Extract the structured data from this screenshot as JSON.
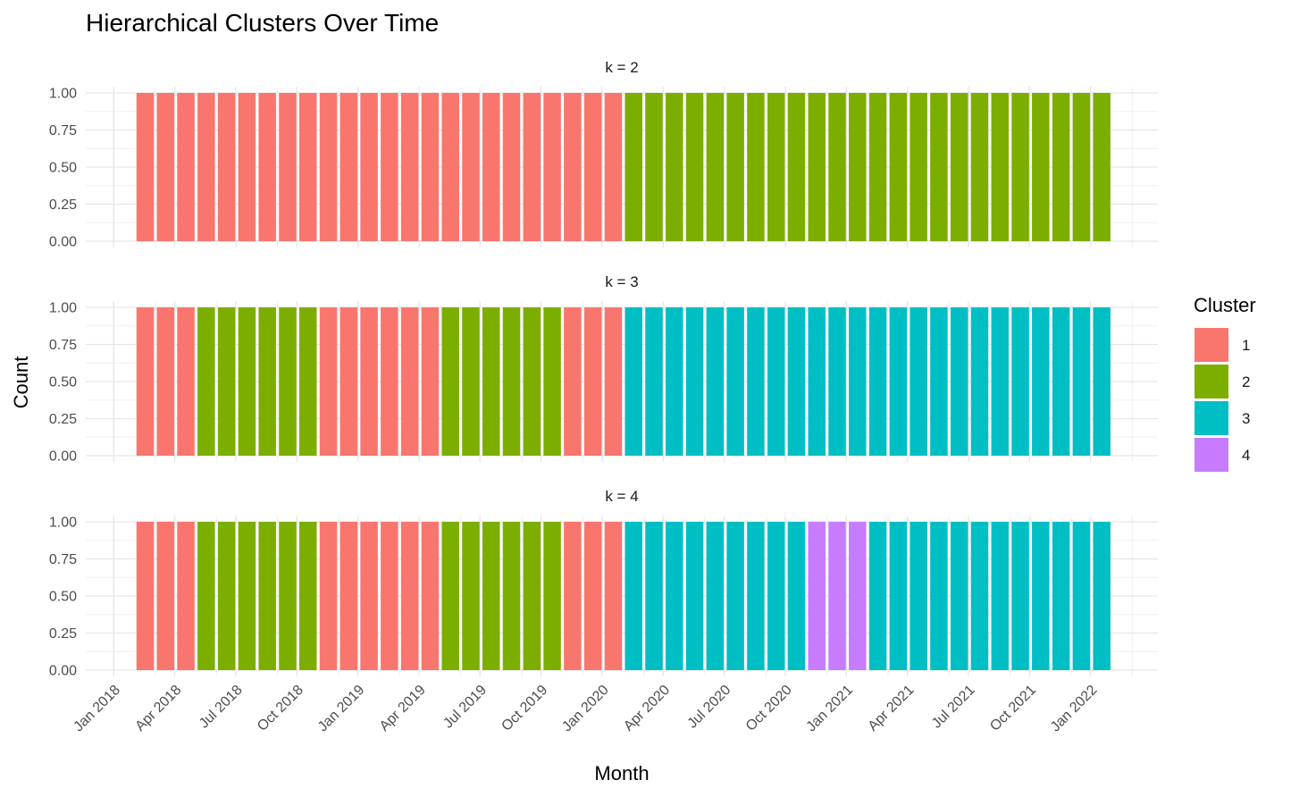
{
  "chart_data": {
    "type": "bar",
    "title": "Hierarchical Clusters Over Time",
    "xlabel": "Month",
    "ylabel": "Count",
    "ylim": [
      0,
      1
    ],
    "y_ticks": [
      "0.00",
      "0.25",
      "0.50",
      "0.75",
      "1.00"
    ],
    "x_tick_labels": [
      "Jan 2018",
      "Apr 2018",
      "Jul 2018",
      "Oct 2018",
      "Jan 2019",
      "Apr 2019",
      "Jul 2019",
      "Oct 2019",
      "Jan 2020",
      "Apr 2020",
      "Jul 2020",
      "Oct 2020",
      "Jan 2021",
      "Apr 2021",
      "Jul 2021",
      "Oct 2021",
      "Jan 2022"
    ],
    "x_start": "2018-01",
    "x_end": "2021-12",
    "legend": {
      "title": "Cluster",
      "position": "right",
      "entries": [
        {
          "label": "1",
          "color": "#F8766D"
        },
        {
          "label": "2",
          "color": "#7CAE00"
        },
        {
          "label": "3",
          "color": "#00BFC4"
        },
        {
          "label": "4",
          "color": "#C77CFF"
        }
      ]
    },
    "panels": [
      {
        "label": "k = 2",
        "value": 1,
        "clusters": [
          1,
          1,
          1,
          1,
          1,
          1,
          1,
          1,
          1,
          1,
          1,
          1,
          1,
          1,
          1,
          1,
          1,
          1,
          1,
          1,
          1,
          1,
          1,
          1,
          2,
          2,
          2,
          2,
          2,
          2,
          2,
          2,
          2,
          2,
          2,
          2,
          2,
          2,
          2,
          2,
          2,
          2,
          2,
          2,
          2,
          2,
          2,
          2
        ]
      },
      {
        "label": "k = 3",
        "value": 1,
        "clusters": [
          1,
          1,
          1,
          2,
          2,
          2,
          2,
          2,
          2,
          1,
          1,
          1,
          1,
          1,
          1,
          2,
          2,
          2,
          2,
          2,
          2,
          1,
          1,
          1,
          3,
          3,
          3,
          3,
          3,
          3,
          3,
          3,
          3,
          3,
          3,
          3,
          3,
          3,
          3,
          3,
          3,
          3,
          3,
          3,
          3,
          3,
          3,
          3
        ]
      },
      {
        "label": "k = 4",
        "value": 1,
        "clusters": [
          1,
          1,
          1,
          2,
          2,
          2,
          2,
          2,
          2,
          1,
          1,
          1,
          1,
          1,
          1,
          2,
          2,
          2,
          2,
          2,
          2,
          1,
          1,
          1,
          3,
          3,
          3,
          3,
          3,
          3,
          3,
          3,
          3,
          4,
          4,
          4,
          3,
          3,
          3,
          3,
          3,
          3,
          3,
          3,
          3,
          3,
          3,
          3
        ]
      }
    ]
  }
}
